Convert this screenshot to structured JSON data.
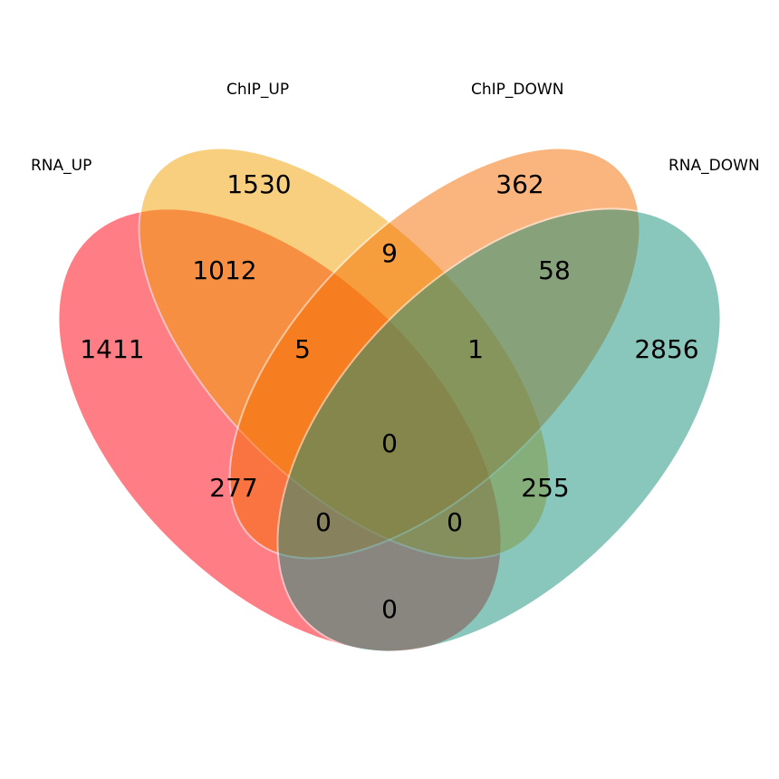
{
  "sets": [
    {
      "key": "rna_up",
      "label": "RNA_UP",
      "color": "#ff0010",
      "opacity": 0.5
    },
    {
      "key": "chip_up",
      "label": "ChIP_UP",
      "color": "#f1a100",
      "opacity": 0.5
    },
    {
      "key": "chip_down",
      "label": "ChIP_DOWN",
      "color": "#f66c00",
      "opacity": 0.5
    },
    {
      "key": "rna_down",
      "label": "RNA_DOWN",
      "color": "#168f79",
      "opacity": 0.5
    }
  ],
  "regions": {
    "rna_up_only": "1411",
    "chip_up_only": "1530",
    "chip_down_only": "362",
    "rna_down_only": "2856",
    "rna_up_chip_up": "1012",
    "chip_up_chip_down": "9",
    "chip_down_rna_down": "58",
    "rna_up_chip_up_chip_down": "5",
    "chip_up_chip_down_rna_down": "1",
    "all_four": "0",
    "rna_up_chip_down": "277",
    "chip_up_rna_down": "255",
    "rna_up_chip_down_rna_down": "0",
    "rna_up_chip_up_rna_down": "0",
    "rna_up_rna_down": "0"
  }
}
